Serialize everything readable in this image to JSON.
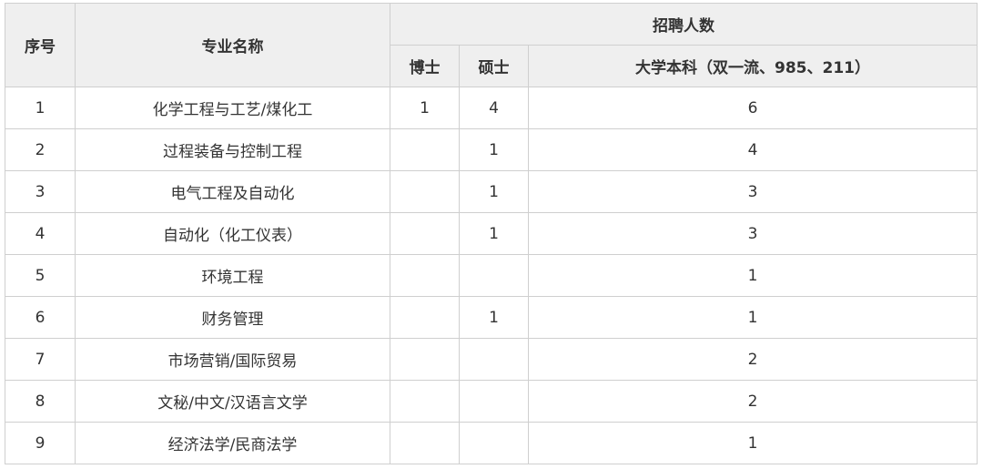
{
  "headers": {
    "index": "序号",
    "major": "专业名称",
    "recruit": "招聘人数",
    "phd": "博士",
    "master": "硕士",
    "bachelor": "大学本科（双一流、985、211）"
  },
  "rows": [
    {
      "index": "1",
      "major": "化学工程与工艺/煤化工",
      "phd": "1",
      "master": "4",
      "bachelor": "6"
    },
    {
      "index": "2",
      "major": "过程装备与控制工程",
      "phd": "",
      "master": "1",
      "bachelor": "4"
    },
    {
      "index": "3",
      "major": "电气工程及自动化",
      "phd": "",
      "master": "1",
      "bachelor": "3"
    },
    {
      "index": "4",
      "major": "自动化（化工仪表）",
      "phd": "",
      "master": "1",
      "bachelor": "3"
    },
    {
      "index": "5",
      "major": "环境工程",
      "phd": "",
      "master": "",
      "bachelor": "1"
    },
    {
      "index": "6",
      "major": "财务管理",
      "phd": "",
      "master": "1",
      "bachelor": "1"
    },
    {
      "index": "7",
      "major": "市场营销/国际贸易",
      "phd": "",
      "master": "",
      "bachelor": "2"
    },
    {
      "index": "8",
      "major": "文秘/中文/汉语言文学",
      "phd": "",
      "master": "",
      "bachelor": "2"
    },
    {
      "index": "9",
      "major": "经济法学/民商法学",
      "phd": "",
      "master": "",
      "bachelor": "1"
    }
  ]
}
